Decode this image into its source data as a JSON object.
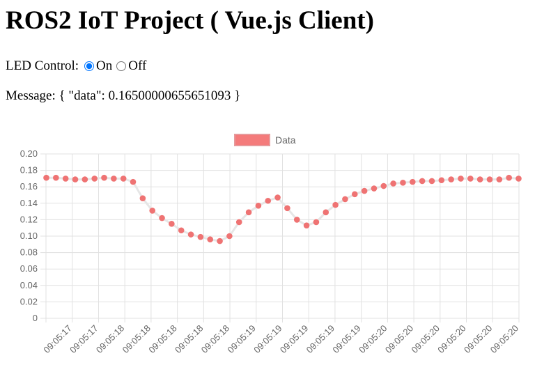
{
  "page": {
    "title": "ROS2 IoT Project ( Vue.js Client)"
  },
  "led": {
    "label": "LED Control:",
    "options": [
      {
        "label": "On",
        "checked": true
      },
      {
        "label": "Off",
        "checked": false
      }
    ]
  },
  "message": {
    "label": "Message:",
    "value": "{ \"data\": 0.16500000655651093 }"
  },
  "chart_data": {
    "type": "line",
    "legend": {
      "label": "Data",
      "position": "top",
      "color": "#f47b7b"
    },
    "point_color": "#ef7373",
    "line_color": "#e6e6e6",
    "grid": true,
    "ylim": [
      0,
      0.2
    ],
    "y_ticks": [
      "0",
      "0.02",
      "0.04",
      "0.06",
      "0.08",
      "0.10",
      "0.12",
      "0.14",
      "0.16",
      "0.18",
      "0.20"
    ],
    "x": [
      "09:05:17",
      "09:05:17",
      "09:05:17",
      "09:05:17",
      "09:05:17",
      "09:05:17",
      "09:05:18",
      "09:05:18",
      "09:05:18",
      "09:05:18",
      "09:05:18",
      "09:05:18",
      "09:05:18",
      "09:05:18",
      "09:05:18",
      "09:05:18",
      "09:05:18",
      "09:05:18",
      "09:05:18",
      "09:05:18",
      "09:05:19",
      "09:05:19",
      "09:05:19",
      "09:05:19",
      "09:05:19",
      "09:05:19",
      "09:05:19",
      "09:05:19",
      "09:05:19",
      "09:05:19",
      "09:05:19",
      "09:05:19",
      "09:05:19",
      "09:05:19",
      "09:05:20",
      "09:05:20",
      "09:05:20",
      "09:05:20",
      "09:05:20",
      "09:05:20",
      "09:05:20",
      "09:05:20",
      "09:05:20",
      "09:05:20",
      "09:05:20",
      "09:05:20",
      "09:05:20",
      "09:05:20",
      "09:05:20",
      "09:05:20"
    ],
    "x_tick_labels": [
      "09:05:17",
      "09:05:17",
      "09:05:18",
      "09:05:18",
      "09:05:18",
      "09:05:18",
      "09:05:18",
      "09:05:19",
      "09:05:19",
      "09:05:19",
      "09:05:19",
      "09:05:19",
      "09:05:20",
      "09:05:20",
      "09:05:20",
      "09:05:20",
      "09:05:20",
      "09:05:20"
    ],
    "values": [
      0.171,
      0.171,
      0.17,
      0.169,
      0.169,
      0.17,
      0.171,
      0.17,
      0.17,
      0.166,
      0.146,
      0.131,
      0.122,
      0.115,
      0.107,
      0.102,
      0.099,
      0.096,
      0.094,
      0.1,
      0.117,
      0.129,
      0.137,
      0.143,
      0.147,
      0.134,
      0.12,
      0.113,
      0.117,
      0.129,
      0.138,
      0.145,
      0.151,
      0.155,
      0.158,
      0.161,
      0.164,
      0.165,
      0.166,
      0.167,
      0.167,
      0.168,
      0.169,
      0.17,
      0.17,
      0.169,
      0.169,
      0.169,
      0.171,
      0.17
    ]
  }
}
